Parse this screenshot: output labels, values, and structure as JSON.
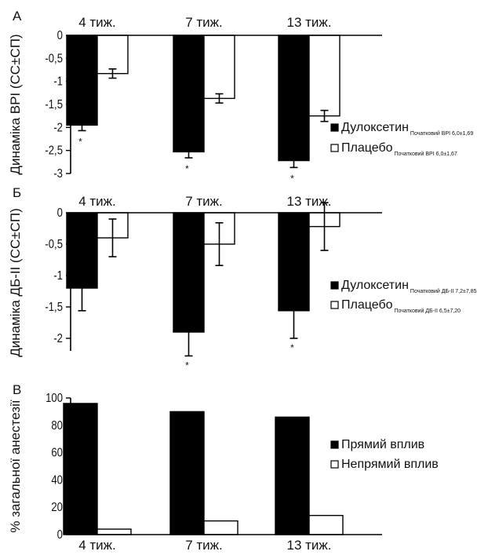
{
  "chart_data": [
    {
      "type": "bar",
      "panel_label": "А",
      "ylabel": "Динаміка ВРІ (СС±СП)",
      "categories": [
        "4 тиж.",
        "7 тиж.",
        "13 тиж."
      ],
      "ylim": [
        -3,
        0
      ],
      "yticks": [
        "0",
        "-0,5",
        "-1",
        "-1,5",
        "-2",
        "-2,5",
        "-3"
      ],
      "series": [
        {
          "name": "Дулоксетин",
          "subscript": "Початковий ВРІ 6,0±1,69",
          "fill": "#000000",
          "values": [
            -1.95,
            -2.53,
            -2.72
          ],
          "errors": [
            0.12,
            0.13,
            0.15
          ]
        },
        {
          "name": "Плацебо",
          "subscript": "Початковий ВРІ 6,0±1,67",
          "fill": "#ffffff",
          "values": [
            -0.83,
            -1.37,
            -1.75
          ],
          "errors": [
            0.1,
            0.1,
            0.12
          ]
        }
      ],
      "significance": [
        "*",
        "*",
        "*"
      ]
    },
    {
      "type": "bar",
      "panel_label": "Б",
      "ylabel": "Динаміка ДБ-II (СС±СП)",
      "categories": [
        "4 тиж.",
        "7 тиж.",
        "13 тиж."
      ],
      "ylim": [
        -2.2,
        0
      ],
      "yticks": [
        "0",
        "-0,5",
        "-1",
        "-1,5",
        "-2"
      ],
      "series": [
        {
          "name": "Дулоксетин",
          "subscript": "Початковий ДБ-II 7,2±7,85",
          "fill": "#000000",
          "values": [
            -1.2,
            -1.9,
            -1.56
          ],
          "errors": [
            0.36,
            0.38,
            0.44
          ]
        },
        {
          "name": "Плацебо",
          "subscript": "Початковий ДБ-II 6,5±7,20",
          "fill": "#ffffff",
          "values": [
            -0.4,
            -0.5,
            -0.22
          ],
          "errors": [
            0.3,
            0.34,
            0.38
          ]
        }
      ],
      "significance": [
        "",
        "*",
        "*"
      ]
    },
    {
      "type": "bar",
      "panel_label": "В",
      "ylabel": "% загальної анестезії",
      "categories": [
        "4 тиж.",
        "7 тиж.",
        "13 тиж."
      ],
      "ylim": [
        0,
        100
      ],
      "yticks": [
        "0",
        "20",
        "40",
        "60",
        "80",
        "100"
      ],
      "series": [
        {
          "name": "Прямий вплив",
          "fill": "#000000",
          "values": [
            96,
            90,
            86
          ]
        },
        {
          "name": "Непрямий вплив",
          "fill": "#ffffff",
          "values": [
            4,
            10,
            14
          ]
        }
      ]
    }
  ]
}
